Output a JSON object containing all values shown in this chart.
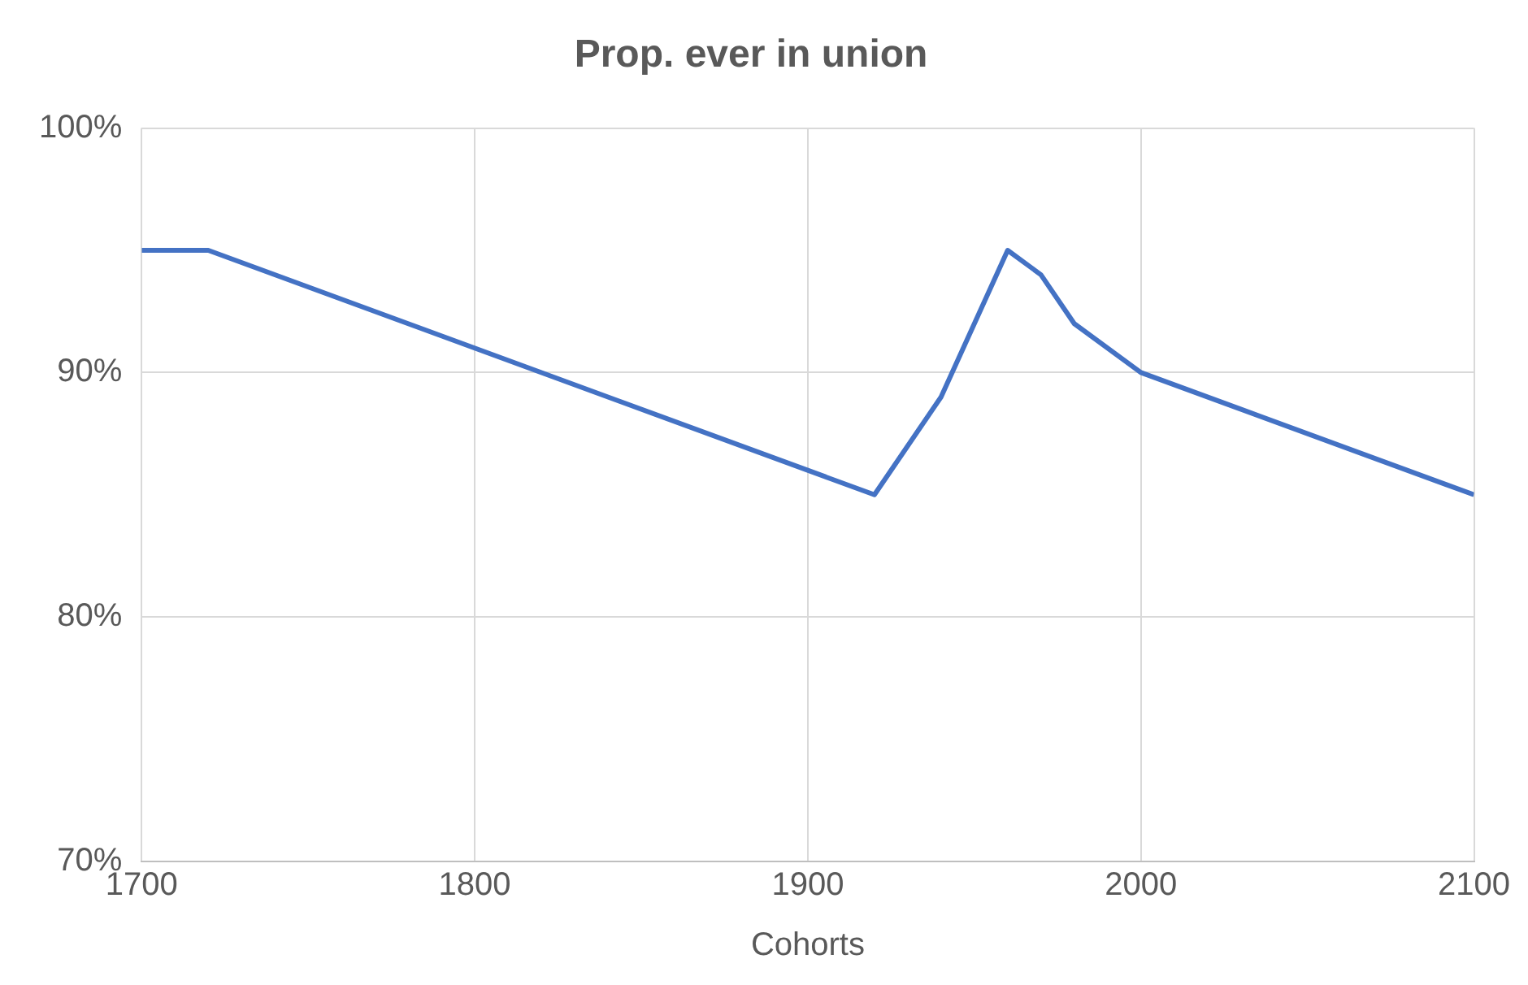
{
  "chart_data": {
    "type": "line",
    "title": "Prop. ever in union",
    "xlabel": "Cohorts",
    "x": [
      1700,
      1720,
      1920,
      1940,
      1960,
      1970,
      1980,
      2000,
      2100
    ],
    "series": [
      {
        "color": "#4472c4",
        "values": [
          95,
          95,
          85,
          89,
          95,
          94,
          92,
          90,
          85
        ]
      }
    ],
    "xlim": [
      1700,
      2100
    ],
    "xticks": [
      1700,
      1800,
      1900,
      2000,
      2100
    ],
    "ylim": [
      70,
      100
    ],
    "yticks": [
      {
        "value": 70,
        "label": "70%"
      },
      {
        "value": 80,
        "label": "80%"
      },
      {
        "value": 90,
        "label": "90%"
      },
      {
        "value": 100,
        "label": "100%"
      }
    ],
    "grid": true,
    "legend": false,
    "marker": "none",
    "line_style": "solid"
  }
}
